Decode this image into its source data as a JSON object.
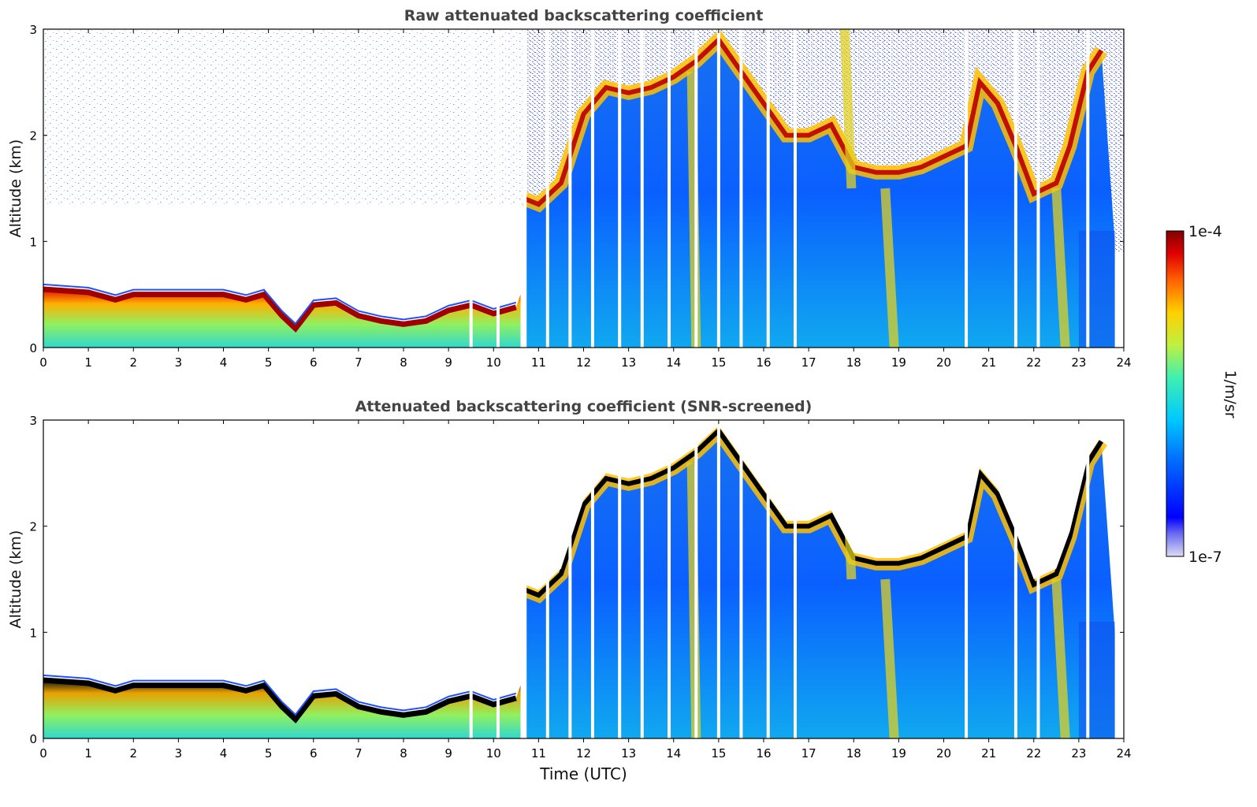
{
  "chart_data": [
    {
      "type": "heatmap",
      "title": "Raw attenuated backscattering coefficient",
      "xlabel": "",
      "ylabel": "Altitude (km)",
      "xlim": [
        0,
        24
      ],
      "ylim": [
        0,
        3
      ],
      "xticks": [
        "0",
        "1",
        "2",
        "3",
        "4",
        "5",
        "6",
        "7",
        "8",
        "9",
        "10",
        "11",
        "12",
        "13",
        "14",
        "15",
        "16",
        "17",
        "18",
        "19",
        "20",
        "21",
        "22",
        "23",
        "24"
      ],
      "yticks": [
        "0",
        "1",
        "2",
        "3"
      ],
      "description_layers": {
        "boundary_layer_top_km": [
          [
            0,
            0.55
          ],
          [
            1,
            0.52
          ],
          [
            1.6,
            0.45
          ],
          [
            2,
            0.5
          ],
          [
            3,
            0.5
          ],
          [
            4,
            0.5
          ],
          [
            4.5,
            0.45
          ],
          [
            4.9,
            0.5
          ],
          [
            5.3,
            0.3
          ],
          [
            5.6,
            0.18
          ],
          [
            6,
            0.4
          ],
          [
            6.5,
            0.42
          ],
          [
            7,
            0.3
          ],
          [
            7.5,
            0.25
          ],
          [
            8,
            0.22
          ],
          [
            8.5,
            0.25
          ],
          [
            9,
            0.35
          ],
          [
            9.5,
            0.4
          ],
          [
            10,
            0.32
          ],
          [
            10.5,
            0.38
          ]
        ],
        "cloud_layer_km": [
          [
            10.7,
            1.4
          ],
          [
            11,
            1.35
          ],
          [
            11.5,
            1.55
          ],
          [
            12,
            2.2
          ],
          [
            12.5,
            2.45
          ],
          [
            13,
            2.4
          ],
          [
            13.5,
            2.45
          ],
          [
            14,
            2.55
          ],
          [
            14.5,
            2.7
          ],
          [
            15,
            2.9
          ],
          [
            16.5,
            2.0
          ],
          [
            17,
            2.0
          ],
          [
            17.5,
            2.1
          ],
          [
            18,
            1.7
          ],
          [
            18.5,
            1.65
          ],
          [
            19,
            1.65
          ],
          [
            19.5,
            1.7
          ],
          [
            20,
            1.8
          ],
          [
            20.5,
            1.9
          ],
          [
            20.8,
            2.5
          ],
          [
            21.2,
            2.3
          ],
          [
            21.6,
            1.9
          ],
          [
            22,
            1.45
          ],
          [
            22.5,
            1.55
          ],
          [
            22.8,
            1.9
          ],
          [
            23.2,
            2.6
          ],
          [
            23.5,
            2.8
          ]
        ]
      }
    },
    {
      "type": "heatmap",
      "title": "Attenuated backscattering coefficient (SNR-screened)",
      "xlabel": "Time (UTC)",
      "ylabel": "Altitude (km)",
      "xlim": [
        0,
        24
      ],
      "ylim": [
        0,
        3
      ],
      "xticks": [
        "0",
        "1",
        "2",
        "3",
        "4",
        "5",
        "6",
        "7",
        "8",
        "9",
        "10",
        "11",
        "12",
        "13",
        "14",
        "15",
        "16",
        "17",
        "18",
        "19",
        "20",
        "21",
        "22",
        "23",
        "24"
      ],
      "yticks": [
        "0",
        "1",
        "2",
        "3"
      ]
    }
  ],
  "colorbar": {
    "label": "1/m/sr",
    "max_label": "1e-4",
    "min_label": "1e-7",
    "scale": "log",
    "colormap": "jet"
  }
}
